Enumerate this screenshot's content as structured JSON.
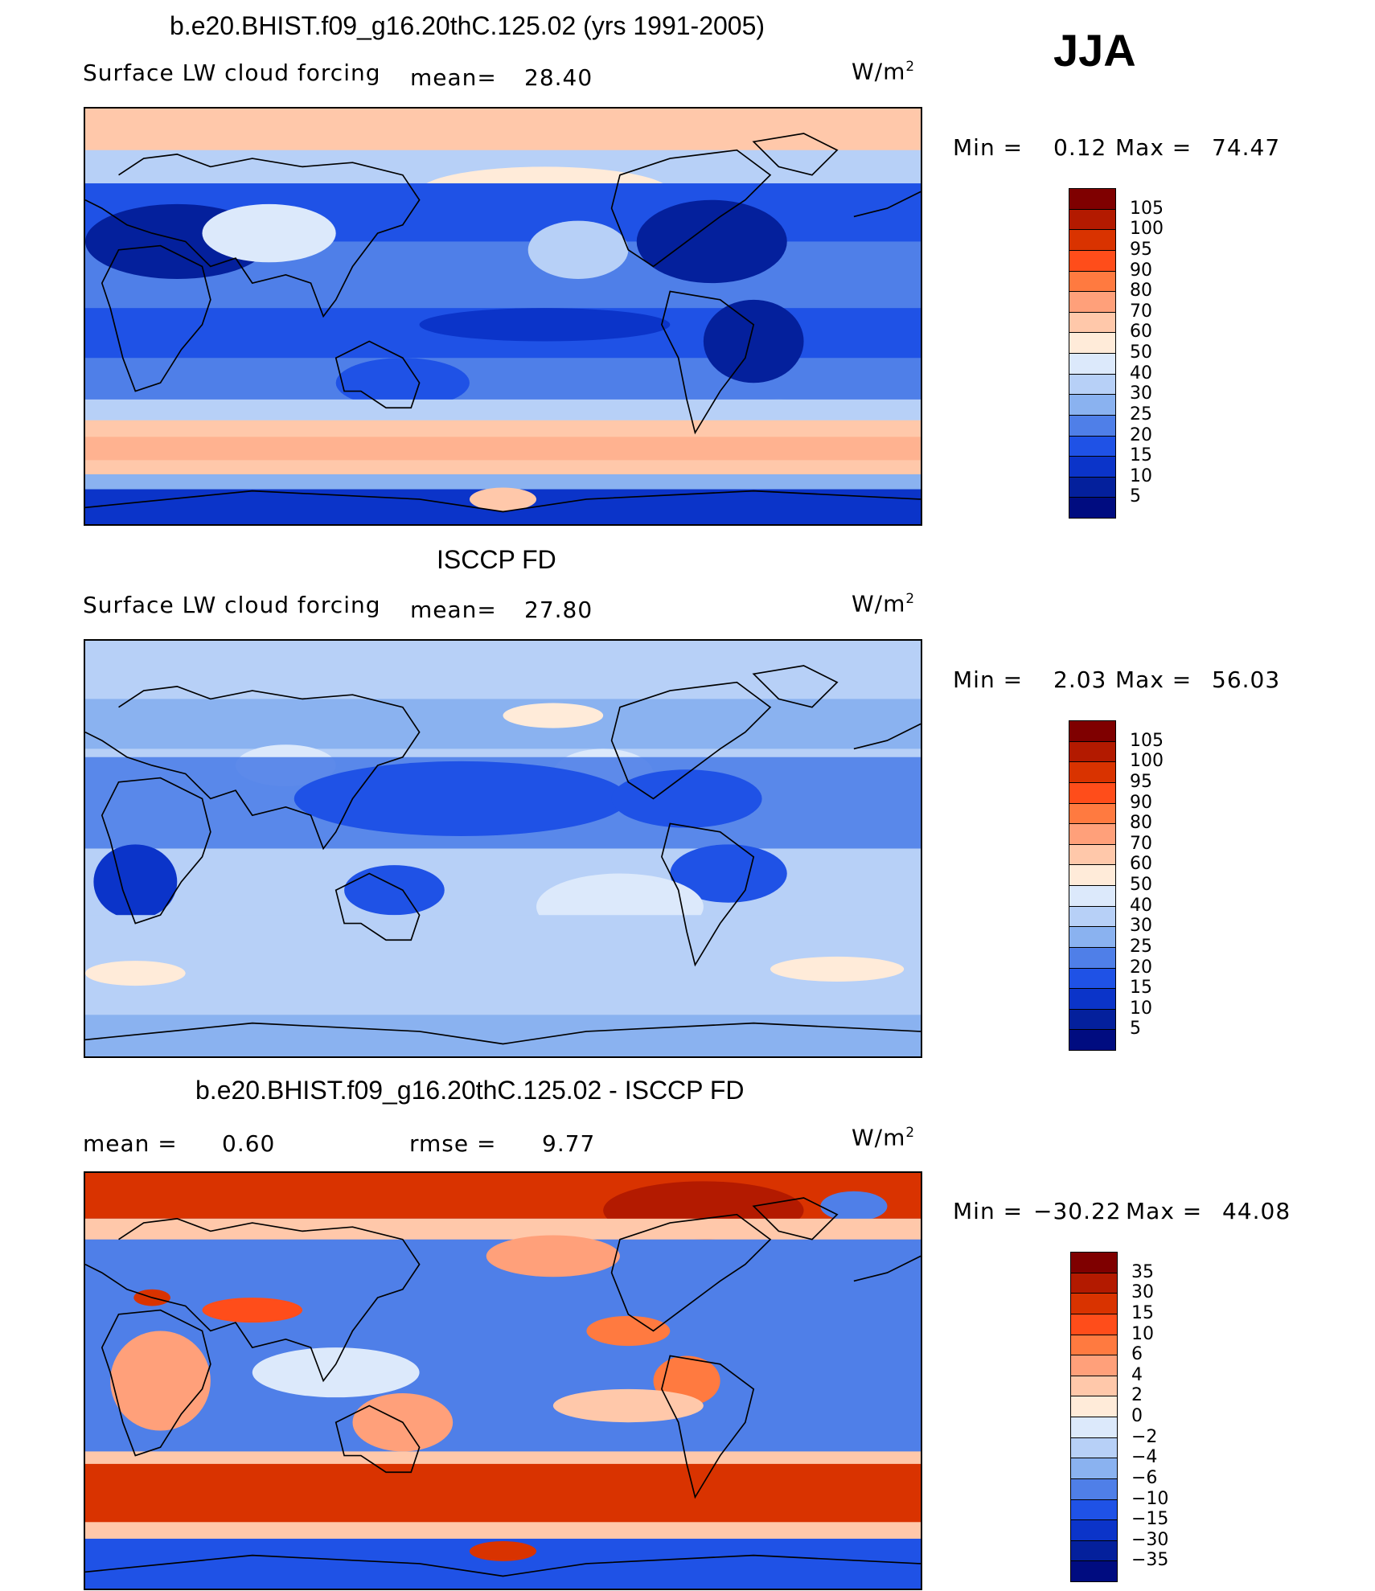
{
  "season": "JJA",
  "units": "W/m",
  "units_exp": "2",
  "panels": [
    {
      "id": "model",
      "title": "b.e20.BHIST.f09_g16.20thC.125.02 (yrs 1991-2005)",
      "variable": "Surface LW cloud forcing",
      "mean_label": "mean=",
      "mean_value": "28.40",
      "min_label": "Min =",
      "min_value": "0.12",
      "max_label": "Max =",
      "max_value": "74.47"
    },
    {
      "id": "obs",
      "title": "ISCCP FD",
      "variable": "Surface LW cloud forcing",
      "mean_label": "mean=",
      "mean_value": "27.80",
      "min_label": "Min =",
      "min_value": "2.03",
      "max_label": "Max =",
      "max_value": "56.03"
    },
    {
      "id": "diff",
      "title": "b.e20.BHIST.f09_g16.20thC.125.02 - ISCCP FD",
      "mean_label": "mean =",
      "mean_value": "0.60",
      "rmse_label": "rmse =",
      "rmse_value": "9.77",
      "min_label": "Min =",
      "min_value": "−30.22",
      "max_label": "Max =",
      "max_value": "44.08"
    }
  ],
  "colorbar_abs": {
    "labels": [
      "105",
      "100",
      "95",
      "90",
      "80",
      "70",
      "60",
      "50",
      "40",
      "30",
      "25",
      "20",
      "15",
      "10",
      "5"
    ],
    "colors": [
      "#7f0000",
      "#b31a00",
      "#d93300",
      "#ff4d1a",
      "#ff7a40",
      "#ffa07a",
      "#ffc8aa",
      "#ffebd9",
      "#dce9fb",
      "#b7d0f7",
      "#8ab2f0",
      "#4f7fe8",
      "#1f52e6",
      "#0b34c9",
      "#04209c",
      "#000c80"
    ]
  },
  "colorbar_diff": {
    "labels": [
      "35",
      "30",
      "15",
      "10",
      "6",
      "4",
      "2",
      "0",
      "−2",
      "−4",
      "−6",
      "−10",
      "−15",
      "−30",
      "−35"
    ],
    "colors": [
      "#7f0000",
      "#b31a00",
      "#d93300",
      "#ff4d1a",
      "#ff7a40",
      "#ffa07a",
      "#ffc8aa",
      "#ffebd9",
      "#dce9fb",
      "#b7d0f7",
      "#8ab2f0",
      "#4f7fe8",
      "#1f52e6",
      "#0b34c9",
      "#04209c",
      "#000c80"
    ]
  }
}
